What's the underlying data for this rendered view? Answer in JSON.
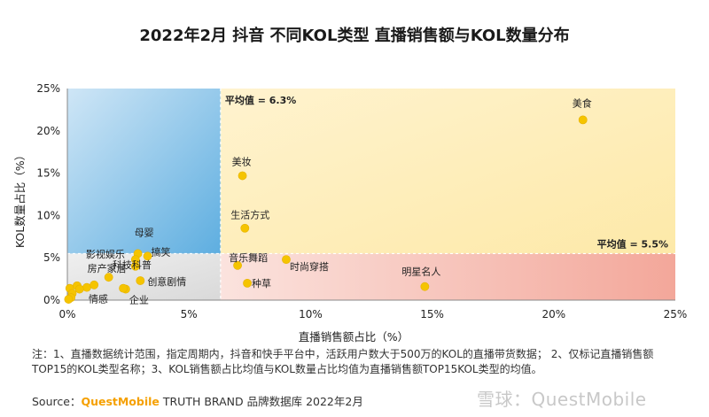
{
  "title": "2022年2月 抖音 不同KOL类型 直播销售额与KOL数量分布",
  "note": "注：1、直播数据统计范围，指定周期内，抖音和快手平台中，活跃用户数大于500万的KOL的直播带货数据；  2、仅标记直播销售额TOP15的KOL类型名称；3、KOL销售额占比均值与KOL数量占比均值为直播销售额TOP15KOL类型的均值。",
  "source": {
    "prefix": "Source：",
    "brand": "QuestMobile",
    "suffix": " TRUTH BRAND 品牌数据库 2022年2月"
  },
  "watermark": "雪球：QuestMobile",
  "colors": {
    "quadrant_top_left": "#5eaee0",
    "quadrant_top_right": "#fde9a8",
    "quadrant_bottom_left": "#d9d9d9",
    "quadrant_bottom_right": "#f3a79a",
    "point": "#f5c400",
    "avg_line": "#aaaaaa"
  },
  "chart_data": {
    "type": "scatter",
    "title": "2022年2月 抖音 不同KOL类型 直播销售额与KOL数量分布",
    "xlabel": "直播销售额占比（%）",
    "ylabel": "KOL数量占比（%）",
    "xlim": [
      0,
      25
    ],
    "ylim": [
      0,
      25
    ],
    "xticks": [
      0,
      5,
      10,
      15,
      20,
      25
    ],
    "yticks": [
      0,
      5,
      10,
      15,
      20,
      25
    ],
    "xtick_labels": [
      "0%",
      "5%",
      "10%",
      "15%",
      "20%",
      "25%"
    ],
    "ytick_labels": [
      "0%",
      "5%",
      "10%",
      "15%",
      "20%",
      "25%"
    ],
    "x_mean": 6.3,
    "y_mean": 5.5,
    "x_mean_label": "平均值 = 6.3%",
    "y_mean_label": "平均值 = 5.5%",
    "points": [
      {
        "label": "美食",
        "x": 21.2,
        "y": 21.3
      },
      {
        "label": "美妆",
        "x": 7.2,
        "y": 14.7
      },
      {
        "label": "生活方式",
        "x": 7.3,
        "y": 8.5
      },
      {
        "label": "母婴",
        "x": 2.9,
        "y": 5.5
      },
      {
        "label": "搞笑",
        "x": 3.3,
        "y": 5.2
      },
      {
        "label": "影视娱乐",
        "x": 2.8,
        "y": 4.8
      },
      {
        "label": "科技科普",
        "x": 2.8,
        "y": 4.0
      },
      {
        "label": "房产家居",
        "x": 1.7,
        "y": 2.7
      },
      {
        "label": "创意剧情",
        "x": 3.0,
        "y": 2.3
      },
      {
        "label": "情感",
        "x": 0.8,
        "y": 1.5
      },
      {
        "label": "企业",
        "x": 2.4,
        "y": 1.3
      },
      {
        "label": "音乐舞蹈",
        "x": 7.0,
        "y": 4.1
      },
      {
        "label": "时尚穿搭",
        "x": 9.0,
        "y": 4.8
      },
      {
        "label": "种草",
        "x": 7.4,
        "y": 2.0
      },
      {
        "label": "明星名人",
        "x": 14.7,
        "y": 1.6
      },
      {
        "label": "",
        "x": 0.1,
        "y": 1.4
      },
      {
        "label": "",
        "x": 0.2,
        "y": 0.8
      },
      {
        "label": "",
        "x": 0.15,
        "y": 0.3
      },
      {
        "label": "",
        "x": 0.4,
        "y": 1.7
      },
      {
        "label": "",
        "x": 0.5,
        "y": 1.3
      },
      {
        "label": "",
        "x": 1.1,
        "y": 1.8
      },
      {
        "label": "",
        "x": 2.3,
        "y": 1.4
      },
      {
        "label": "",
        "x": 0.05,
        "y": 0.1
      }
    ]
  }
}
